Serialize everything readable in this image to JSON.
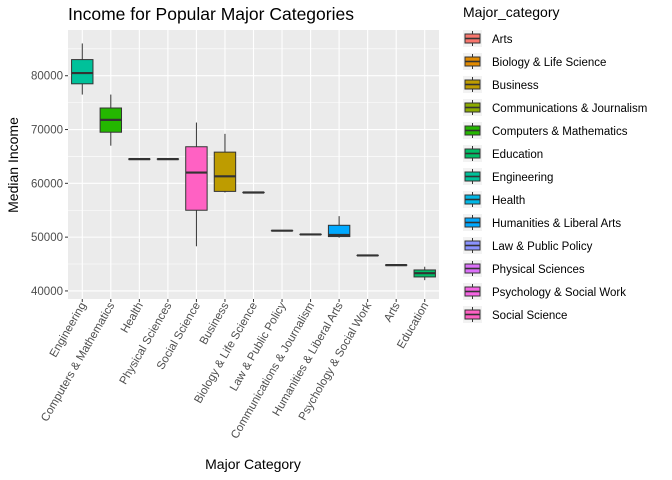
{
  "chart_data": {
    "type": "box",
    "title": "Income for Popular Major Categories",
    "xlabel": "Major Category",
    "ylabel": "Median Income",
    "ylim": [
      38500,
      88500
    ],
    "y_ticks": [
      40000,
      50000,
      60000,
      70000,
      80000
    ],
    "y_tick_labels": [
      "40000",
      "50000",
      "60000",
      "70000",
      "80000"
    ],
    "grid": true,
    "legend": {
      "title": "Major_category",
      "position": "right"
    },
    "categories": [
      "Engineering",
      "Computers & Mathematics",
      "Health",
      "Physical Sciences",
      "Social Science",
      "Business",
      "Biology & Life Science",
      "Law & Public Policy",
      "Communications & Journalism",
      "Humanities & Liberal Arts",
      "Psychology & Social Work",
      "Arts",
      "Education"
    ],
    "series": [
      {
        "name": "Engineering",
        "color": "#00C19A",
        "min": 76500,
        "q1": 78500,
        "median": 80500,
        "q3": 83000,
        "max": 86000
      },
      {
        "name": "Computers & Mathematics",
        "color": "#24B700",
        "min": 67000,
        "q1": 69500,
        "median": 71800,
        "q3": 74000,
        "max": 76500
      },
      {
        "name": "Health",
        "color": "#00B8E7",
        "min": 64500,
        "q1": 64500,
        "median": 64500,
        "q3": 64500,
        "max": 64500
      },
      {
        "name": "Physical Sciences",
        "color": "#DC71FA",
        "min": 64500,
        "q1": 64500,
        "median": 64500,
        "q3": 64500,
        "max": 64500
      },
      {
        "name": "Social Science",
        "color": "#FF61C3",
        "min": 48300,
        "q1": 55000,
        "median": 62000,
        "q3": 66800,
        "max": 71300
      },
      {
        "name": "Business",
        "color": "#BE9C00",
        "min": 58300,
        "q1": 58500,
        "median": 61300,
        "q3": 65800,
        "max": 69200
      },
      {
        "name": "Biology & Life Science",
        "color": "#E18A00",
        "min": 58300,
        "q1": 58300,
        "median": 58300,
        "q3": 58300,
        "max": 58300
      },
      {
        "name": "Law & Public Policy",
        "color": "#8B93FF",
        "min": 51200,
        "q1": 51200,
        "median": 51200,
        "q3": 51200,
        "max": 51200
      },
      {
        "name": "Communications & Journalism",
        "color": "#8CAB00",
        "min": 50500,
        "q1": 50500,
        "median": 50500,
        "q3": 50500,
        "max": 50500
      },
      {
        "name": "Humanities & Liberal Arts",
        "color": "#00A9FF",
        "min": 49900,
        "q1": 50100,
        "median": 50400,
        "q3": 52200,
        "max": 53900
      },
      {
        "name": "Psychology & Social Work",
        "color": "#F564E3",
        "min": 46600,
        "q1": 46600,
        "median": 46600,
        "q3": 46600,
        "max": 46600
      },
      {
        "name": "Arts",
        "color": "#F8766D",
        "min": 44800,
        "q1": 44800,
        "median": 44800,
        "q3": 44800,
        "max": 44800
      },
      {
        "name": "Education",
        "color": "#00BE67",
        "min": 42000,
        "q1": 42600,
        "median": 43300,
        "q3": 43900,
        "max": 44500
      }
    ],
    "legend_entries": [
      {
        "label": "Arts",
        "color": "#F8766D"
      },
      {
        "label": "Biology & Life Science",
        "color": "#E18A00"
      },
      {
        "label": "Business",
        "color": "#BE9C00"
      },
      {
        "label": "Communications & Journalism",
        "color": "#8CAB00"
      },
      {
        "label": "Computers & Mathematics",
        "color": "#24B700"
      },
      {
        "label": "Education",
        "color": "#00BE67"
      },
      {
        "label": "Engineering",
        "color": "#00C19A"
      },
      {
        "label": "Health",
        "color": "#00B8E7"
      },
      {
        "label": "Humanities & Liberal Arts",
        "color": "#00A9FF"
      },
      {
        "label": "Law & Public Policy",
        "color": "#8B93FF"
      },
      {
        "label": "Physical Sciences",
        "color": "#DC71FA"
      },
      {
        "label": "Psychology & Social Work",
        "color": "#F564E3"
      },
      {
        "label": "Social Science",
        "color": "#FF61C3"
      }
    ]
  }
}
